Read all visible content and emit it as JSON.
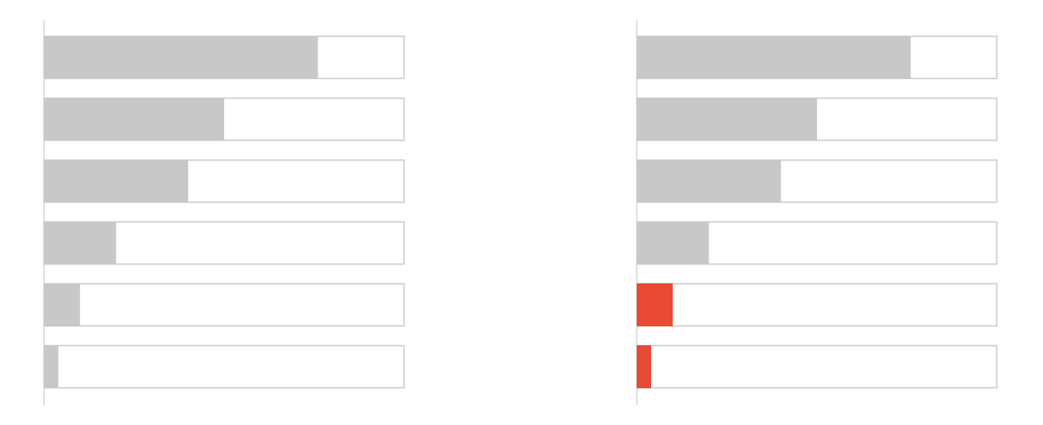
{
  "chart_data": [
    {
      "type": "bar",
      "orientation": "horizontal",
      "bar_style": "filled-proportion",
      "title": "",
      "xlabel": "",
      "ylabel": "",
      "xlim": [
        0,
        1
      ],
      "grid": false,
      "legend": "none",
      "categories": [
        "",
        "",
        "",
        "",
        "",
        ""
      ],
      "values": [
        0.76,
        0.5,
        0.4,
        0.2,
        0.1,
        0.04
      ],
      "colors": [
        "#c8c8c8",
        "#c8c8c8",
        "#c8c8c8",
        "#c8c8c8",
        "#c8c8c8",
        "#c8c8c8"
      ]
    },
    {
      "type": "bar",
      "orientation": "horizontal",
      "bar_style": "filled-proportion",
      "title": "",
      "xlabel": "",
      "ylabel": "",
      "xlim": [
        0,
        1
      ],
      "grid": false,
      "legend": "none",
      "categories": [
        "",
        "",
        "",
        "",
        "",
        ""
      ],
      "values": [
        0.76,
        0.5,
        0.4,
        0.2,
        0.1,
        0.04
      ],
      "colors": [
        "#c8c8c8",
        "#c8c8c8",
        "#c8c8c8",
        "#c8c8c8",
        "#e84a36",
        "#e84a36"
      ]
    }
  ],
  "style": {
    "track_fill": "#ffffff",
    "track_stroke": "#cccccc",
    "axis_color": "#d9d9d9"
  }
}
